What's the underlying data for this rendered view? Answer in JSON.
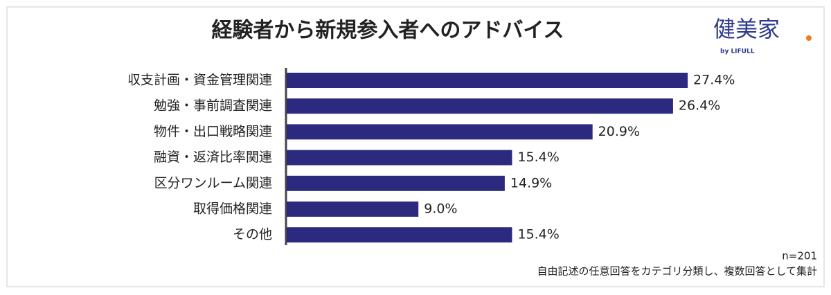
{
  "chart_data": {
    "type": "hbar",
    "title": "経験者から新規参入者へのアドバイス",
    "categories": [
      "収支計画・資金管理関連",
      "勉強・事前調査関連",
      "物件・出口戦略関連",
      "融資・返済比率関連",
      "区分ワンルーム関連",
      "取得価格関連",
      "その他"
    ],
    "values": [
      27.4,
      26.4,
      20.9,
      15.4,
      14.9,
      9.0,
      15.4
    ],
    "value_labels": [
      "27.4%",
      "26.4%",
      "20.9%",
      "15.4%",
      "14.9%",
      "9.0%",
      "15.4%"
    ],
    "color": "#2b2a7f",
    "xlim": [
      0,
      30
    ],
    "logo": "健美家",
    "logo_sub": "by LIFULL",
    "notes": [
      "n=201",
      "自由記述の任意回答をカテゴリ分類し、複数回答として集計"
    ]
  }
}
